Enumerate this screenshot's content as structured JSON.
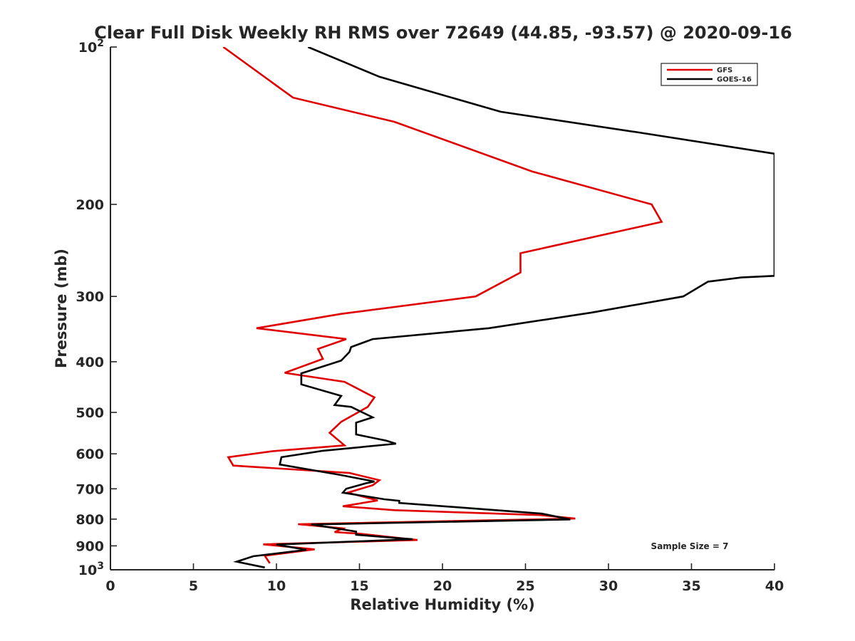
{
  "chart_data": {
    "type": "line",
    "title": "Clear Full Disk Weekly RH RMS over 72649 (44.85, -93.57) @ 2020-09-16",
    "xlabel": "Relative Humidity (%)",
    "ylabel": "Pressure (mb)",
    "xlim": [
      0,
      40
    ],
    "ylim": [
      100,
      1000
    ],
    "y_scale": "log",
    "y_reversed": true,
    "xticks": [
      0,
      5,
      10,
      15,
      20,
      25,
      30,
      35,
      40
    ],
    "yticks": [
      {
        "value": 100,
        "label": "10",
        "sup": "2"
      },
      {
        "value": 200,
        "label": "200",
        "sup": ""
      },
      {
        "value": 300,
        "label": "300",
        "sup": ""
      },
      {
        "value": 400,
        "label": "400",
        "sup": ""
      },
      {
        "value": 500,
        "label": "500",
        "sup": ""
      },
      {
        "value": 600,
        "label": "600",
        "sup": ""
      },
      {
        "value": 700,
        "label": "700",
        "sup": ""
      },
      {
        "value": 800,
        "label": "800",
        "sup": ""
      },
      {
        "value": 900,
        "label": "900",
        "sup": ""
      },
      {
        "value": 1000,
        "label": "10",
        "sup": "3"
      }
    ],
    "grid": false,
    "legend_position": "top-right",
    "series": [
      {
        "name": "GFS",
        "color": "#e00000",
        "points": [
          [
            6.8,
            100
          ],
          [
            11.0,
            125
          ],
          [
            17.1,
            139
          ],
          [
            25.4,
            173
          ],
          [
            32.6,
            200
          ],
          [
            33.2,
            216
          ],
          [
            24.7,
            248
          ],
          [
            24.7,
            270
          ],
          [
            22.0,
            300
          ],
          [
            13.9,
            324
          ],
          [
            8.8,
            345
          ],
          [
            14.2,
            362
          ],
          [
            12.5,
            378
          ],
          [
            12.8,
            395
          ],
          [
            10.5,
            420
          ],
          [
            14.1,
            437
          ],
          [
            15.9,
            468
          ],
          [
            15.5,
            488
          ],
          [
            13.9,
            521
          ],
          [
            13.2,
            547
          ],
          [
            14.1,
            578
          ],
          [
            9.8,
            593
          ],
          [
            7.1,
            609
          ],
          [
            7.4,
            632
          ],
          [
            14.4,
            653
          ],
          [
            16.2,
            674
          ],
          [
            15.8,
            689
          ],
          [
            14.3,
            712
          ],
          [
            16.1,
            737
          ],
          [
            14.0,
            756
          ],
          [
            17.1,
            769
          ],
          [
            25.9,
            786
          ],
          [
            28.0,
            798
          ],
          [
            11.3,
            818
          ],
          [
            14.0,
            833
          ],
          [
            13.5,
            847
          ],
          [
            15.0,
            853
          ],
          [
            18.5,
            877
          ],
          [
            9.2,
            894
          ],
          [
            12.3,
            914
          ],
          [
            9.3,
            940
          ],
          [
            9.6,
            972
          ]
        ]
      },
      {
        "name": "GOES-16",
        "color": "#000000",
        "points": [
          [
            11.9,
            100
          ],
          [
            16.2,
            114
          ],
          [
            23.5,
            133
          ],
          [
            32.0,
            146
          ],
          [
            40.0,
            160
          ],
          [
            40.0,
            274
          ],
          [
            38.0,
            276
          ],
          [
            36.0,
            281
          ],
          [
            34.5,
            300
          ],
          [
            29.0,
            322
          ],
          [
            22.8,
            345
          ],
          [
            15.8,
            362
          ],
          [
            14.5,
            375
          ],
          [
            14.4,
            383
          ],
          [
            13.9,
            398
          ],
          [
            11.5,
            421
          ],
          [
            11.5,
            442
          ],
          [
            13.9,
            465
          ],
          [
            13.5,
            484
          ],
          [
            14.5,
            488
          ],
          [
            15.8,
            511
          ],
          [
            14.8,
            523
          ],
          [
            14.8,
            551
          ],
          [
            16.6,
            566
          ],
          [
            17.2,
            574
          ],
          [
            12.8,
            592
          ],
          [
            10.3,
            609
          ],
          [
            10.2,
            629
          ],
          [
            13.8,
            658
          ],
          [
            15.9,
            678
          ],
          [
            15.4,
            683
          ],
          [
            14.2,
            700
          ],
          [
            14.0,
            712
          ],
          [
            16.5,
            733
          ],
          [
            17.4,
            738
          ],
          [
            17.4,
            745
          ],
          [
            21.3,
            761
          ],
          [
            26.0,
            781
          ],
          [
            27.7,
            801
          ],
          [
            12.1,
            819
          ],
          [
            14.8,
            845
          ],
          [
            14.8,
            857
          ],
          [
            17.3,
            870
          ],
          [
            18.2,
            874
          ],
          [
            10.0,
            895
          ],
          [
            11.8,
            916
          ],
          [
            8.6,
            942
          ],
          [
            7.6,
            965
          ],
          [
            9.3,
            990
          ]
        ]
      }
    ],
    "annotation": "Sample Size = 7"
  }
}
